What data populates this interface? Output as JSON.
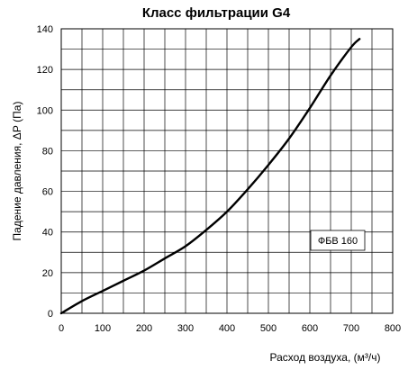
{
  "chart_data": {
    "type": "line",
    "title": "Класс фильтрации G4",
    "xlabel": "Расход воздуха, (м³/ч)",
    "ylabel": "Падение давления, ΔР (Па)",
    "xlim": [
      0,
      800
    ],
    "ylim": [
      0,
      140
    ],
    "xticks": [
      0,
      100,
      200,
      300,
      400,
      500,
      600,
      700,
      800
    ],
    "yticks": [
      0,
      20,
      40,
      60,
      80,
      100,
      120,
      140
    ],
    "grid": true,
    "legend": {
      "placement": "right",
      "label": "ФБВ 160"
    },
    "series": [
      {
        "name": "ФБВ 160",
        "color": "#000000",
        "x": [
          0,
          50,
          100,
          150,
          200,
          250,
          300,
          350,
          400,
          450,
          500,
          550,
          600,
          650,
          700,
          720
        ],
        "y": [
          0,
          6,
          11,
          16,
          21,
          27,
          33,
          41,
          50,
          61,
          73,
          86,
          101,
          117,
          131,
          135
        ]
      }
    ]
  }
}
